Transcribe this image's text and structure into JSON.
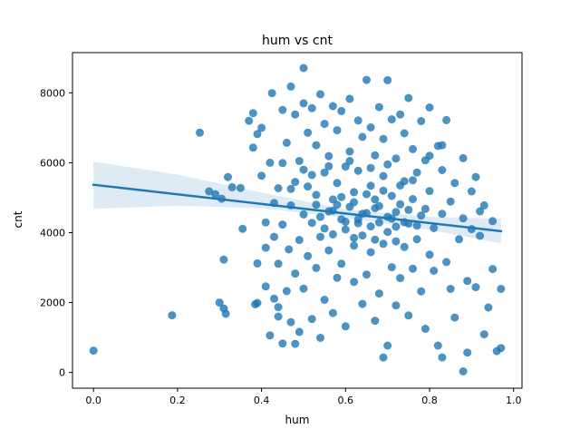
{
  "chart_data": {
    "type": "scatter",
    "title": "hum vs cnt",
    "xlabel": "hum",
    "ylabel": "cnt",
    "xlim": [
      -0.05,
      1.02
    ],
    "ylim": [
      -450,
      9150
    ],
    "x_ticks": [
      0.0,
      0.2,
      0.4,
      0.6,
      0.8,
      1.0
    ],
    "x_tick_labels": [
      "0.0",
      "0.2",
      "0.4",
      "0.6",
      "0.8",
      "1.0"
    ],
    "y_ticks": [
      0,
      2000,
      4000,
      6000,
      8000
    ],
    "y_tick_labels": [
      "0",
      "2000",
      "4000",
      "6000",
      "8000"
    ],
    "grid": false,
    "series_color": "#1f77b4",
    "band_color": "#1f77b4",
    "regression": {
      "x_range": [
        0.0,
        0.97
      ],
      "intercept": 5370,
      "slope": -1370,
      "ci_band": [
        {
          "x": 0.0,
          "lower": 4680,
          "upper": 6030
        },
        {
          "x": 0.2,
          "lower": 4770,
          "upper": 5660
        },
        {
          "x": 0.4,
          "lower": 4700,
          "upper": 5150
        },
        {
          "x": 0.6,
          "lower": 4420,
          "upper": 4670
        },
        {
          "x": 0.8,
          "lower": 4080,
          "upper": 4450
        },
        {
          "x": 0.97,
          "lower": 3690,
          "upper": 4400
        }
      ]
    },
    "points": [
      [
        0.0,
        623
      ],
      [
        0.187,
        1635
      ],
      [
        0.253,
        6860
      ],
      [
        0.275,
        5180
      ],
      [
        0.29,
        5100
      ],
      [
        0.305,
        4970
      ],
      [
        0.3,
        2000
      ],
      [
        0.31,
        1830
      ],
      [
        0.315,
        1680
      ],
      [
        0.31,
        3230
      ],
      [
        0.32,
        5590
      ],
      [
        0.33,
        5300
      ],
      [
        0.35,
        5280
      ],
      [
        0.355,
        4110
      ],
      [
        0.37,
        7200
      ],
      [
        0.38,
        7420
      ],
      [
        0.38,
        6430
      ],
      [
        0.39,
        3120
      ],
      [
        0.385,
        1950
      ],
      [
        0.39,
        1990
      ],
      [
        0.39,
        6820
      ],
      [
        0.4,
        7000
      ],
      [
        0.4,
        5630
      ],
      [
        0.41,
        3570
      ],
      [
        0.41,
        4290
      ],
      [
        0.41,
        2460
      ],
      [
        0.42,
        1060
      ],
      [
        0.42,
        6000
      ],
      [
        0.425,
        7990
      ],
      [
        0.43,
        4850
      ],
      [
        0.43,
        3880
      ],
      [
        0.43,
        2110
      ],
      [
        0.44,
        1870
      ],
      [
        0.44,
        3110
      ],
      [
        0.44,
        5270
      ],
      [
        0.45,
        830
      ],
      [
        0.45,
        7510
      ],
      [
        0.45,
        5990
      ],
      [
        0.45,
        4230
      ],
      [
        0.46,
        2330
      ],
      [
        0.46,
        6570
      ],
      [
        0.465,
        3520
      ],
      [
        0.47,
        8180
      ],
      [
        0.47,
        4780
      ],
      [
        0.47,
        1440
      ],
      [
        0.48,
        7380
      ],
      [
        0.48,
        2830
      ],
      [
        0.48,
        5450
      ],
      [
        0.49,
        3790
      ],
      [
        0.49,
        6050
      ],
      [
        0.49,
        1160
      ],
      [
        0.5,
        7700
      ],
      [
        0.5,
        8710
      ],
      [
        0.5,
        4520
      ],
      [
        0.5,
        2400
      ],
      [
        0.51,
        5320
      ],
      [
        0.51,
        6860
      ],
      [
        0.51,
        3330
      ],
      [
        0.52,
        7560
      ],
      [
        0.52,
        1530
      ],
      [
        0.52,
        4280
      ],
      [
        0.53,
        2990
      ],
      [
        0.53,
        6500
      ],
      [
        0.53,
        5080
      ],
      [
        0.54,
        7960
      ],
      [
        0.54,
        3880
      ],
      [
        0.54,
        990
      ],
      [
        0.55,
        5720
      ],
      [
        0.55,
        7110
      ],
      [
        0.55,
        2080
      ],
      [
        0.56,
        4610
      ],
      [
        0.56,
        6190
      ],
      [
        0.56,
        3490
      ],
      [
        0.57,
        7620
      ],
      [
        0.57,
        4950
      ],
      [
        0.57,
        1700
      ],
      [
        0.58,
        5420
      ],
      [
        0.58,
        2710
      ],
      [
        0.58,
        6930
      ],
      [
        0.59,
        4380
      ],
      [
        0.59,
        7480
      ],
      [
        0.59,
        3110
      ],
      [
        0.6,
        5890
      ],
      [
        0.6,
        4090
      ],
      [
        0.6,
        1320
      ],
      [
        0.61,
        7830
      ],
      [
        0.61,
        4740
      ],
      [
        0.61,
        6320
      ],
      [
        0.62,
        2590
      ],
      [
        0.62,
        5160
      ],
      [
        0.62,
        3630
      ],
      [
        0.63,
        7210
      ],
      [
        0.63,
        4380
      ],
      [
        0.63,
        5770
      ],
      [
        0.64,
        1960
      ],
      [
        0.64,
        6740
      ],
      [
        0.64,
        3920
      ],
      [
        0.65,
        8370
      ],
      [
        0.65,
        4560
      ],
      [
        0.65,
        2800
      ],
      [
        0.66,
        5340
      ],
      [
        0.66,
        7010
      ],
      [
        0.66,
        3440
      ],
      [
        0.67,
        4700
      ],
      [
        0.67,
        6210
      ],
      [
        0.67,
        1480
      ],
      [
        0.68,
        7590
      ],
      [
        0.68,
        4290
      ],
      [
        0.68,
        2260
      ],
      [
        0.69,
        5620
      ],
      [
        0.69,
        3680
      ],
      [
        0.69,
        6680
      ],
      [
        0.7,
        8360
      ],
      [
        0.7,
        4450
      ],
      [
        0.7,
        770
      ],
      [
        0.71,
        5050
      ],
      [
        0.71,
        7240
      ],
      [
        0.71,
        3010
      ],
      [
        0.72,
        4170
      ],
      [
        0.72,
        6120
      ],
      [
        0.72,
        1920
      ],
      [
        0.73,
        7380
      ],
      [
        0.73,
        4810
      ],
      [
        0.73,
        2700
      ],
      [
        0.74,
        5470
      ],
      [
        0.74,
        3590
      ],
      [
        0.74,
        6840
      ],
      [
        0.75,
        4260
      ],
      [
        0.75,
        1630
      ],
      [
        0.75,
        7850
      ],
      [
        0.76,
        4960
      ],
      [
        0.76,
        6390
      ],
      [
        0.76,
        2970
      ],
      [
        0.77,
        3810
      ],
      [
        0.77,
        5720
      ],
      [
        0.78,
        7190
      ],
      [
        0.78,
        2320
      ],
      [
        0.78,
        4490
      ],
      [
        0.79,
        6070
      ],
      [
        0.79,
        1250
      ],
      [
        0.8,
        7580
      ],
      [
        0.8,
        3370
      ],
      [
        0.8,
        5190
      ],
      [
        0.81,
        4130
      ],
      [
        0.81,
        2910
      ],
      [
        0.82,
        6480
      ],
      [
        0.82,
        770
      ],
      [
        0.83,
        4540
      ],
      [
        0.83,
        5790
      ],
      [
        0.84,
        3160
      ],
      [
        0.84,
        7220
      ],
      [
        0.85,
        2390
      ],
      [
        0.85,
        4890
      ],
      [
        0.86,
        5420
      ],
      [
        0.86,
        1570
      ],
      [
        0.87,
        3810
      ],
      [
        0.88,
        4410
      ],
      [
        0.88,
        6130
      ],
      [
        0.89,
        2620
      ],
      [
        0.89,
        570
      ],
      [
        0.9,
        4100
      ],
      [
        0.9,
        5180
      ],
      [
        0.91,
        2440
      ],
      [
        0.92,
        3910
      ],
      [
        0.93,
        4780
      ],
      [
        0.93,
        1090
      ],
      [
        0.94,
        1860
      ],
      [
        0.95,
        4330
      ],
      [
        0.95,
        2960
      ],
      [
        0.96,
        610
      ],
      [
        0.97,
        2390
      ],
      [
        0.97,
        700
      ],
      [
        0.91,
        5590
      ],
      [
        0.92,
        4610
      ],
      [
        0.88,
        30
      ],
      [
        0.83,
        430
      ],
      [
        0.69,
        430
      ],
      [
        0.48,
        820
      ],
      [
        0.44,
        1600
      ],
      [
        0.55,
        4120
      ],
      [
        0.57,
        4630
      ],
      [
        0.6,
        4310
      ],
      [
        0.62,
        4870
      ],
      [
        0.64,
        4540
      ],
      [
        0.66,
        4180
      ],
      [
        0.68,
        4760
      ],
      [
        0.7,
        4020
      ],
      [
        0.72,
        4590
      ],
      [
        0.74,
        4300
      ],
      [
        0.58,
        4800
      ],
      [
        0.63,
        4270
      ],
      [
        0.67,
        4950
      ],
      [
        0.71,
        4400
      ],
      [
        0.75,
        4650
      ],
      [
        0.54,
        4450
      ],
      [
        0.59,
        5020
      ],
      [
        0.65,
        5100
      ],
      [
        0.69,
        5200
      ],
      [
        0.73,
        5350
      ],
      [
        0.52,
        5650
      ],
      [
        0.56,
        5900
      ],
      [
        0.61,
        6050
      ],
      [
        0.66,
        5850
      ],
      [
        0.7,
        5950
      ],
      [
        0.47,
        5250
      ],
      [
        0.5,
        5800
      ],
      [
        0.53,
        4800
      ],
      [
        0.57,
        3950
      ],
      [
        0.62,
        3850
      ],
      [
        0.67,
        3800
      ],
      [
        0.72,
        3750
      ],
      [
        0.77,
        4200
      ],
      [
        0.79,
        4680
      ],
      [
        0.76,
        5500
      ],
      [
        0.8,
        6200
      ],
      [
        0.83,
        6500
      ]
    ]
  }
}
